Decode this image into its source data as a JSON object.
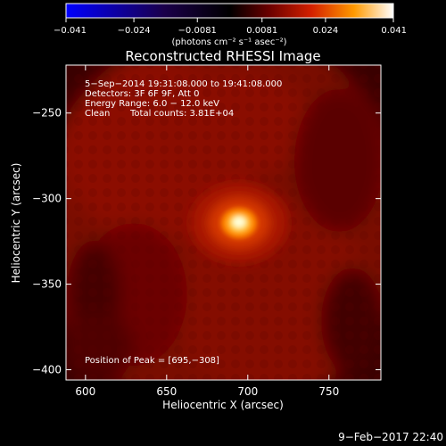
{
  "chart_data": {
    "type": "heatmap",
    "title": "Reconstructed RHESSI Image",
    "xlabel": "Heliocentric X (arcsec)",
    "ylabel": "Heliocentric Y (arcsec)",
    "xlim": [
      588,
      782
    ],
    "ylim": [
      -406,
      -222
    ],
    "x_ticks": [
      600,
      650,
      700,
      750
    ],
    "y_ticks": [
      -250,
      -300,
      -350,
      -400
    ],
    "colorbar": {
      "min": -0.041,
      "max": 0.041,
      "tick_values": [
        -0.041,
        -0.024,
        -0.0081,
        0.0081,
        0.024,
        0.041
      ],
      "tick_labels": [
        "−0.041",
        "−0.024",
        "−0.0081",
        "0.0081",
        "0.024",
        "0.041"
      ],
      "unit_label": "(photons cm⁻² s⁻¹ asec⁻²)",
      "colormap": [
        "#0000ff",
        "#000000",
        "#cc0000",
        "#ff9900",
        "#ffffff"
      ]
    },
    "annotations": [
      "5−Sep−2014 19:31:08.000 to 19:41:08.000",
      "Detectors: 3F 6F 9F, Att 0",
      "Energy Range: 6.0 − 12.0 keV",
      "Clean",
      "Total counts: 3.81E+04"
    ],
    "peak_label": "Position of Peak = [695,−308]",
    "peak": {
      "x": 695,
      "y": -308
    },
    "grid": false
  },
  "footer": {
    "timestamp": "9−Feb−2017 22:40"
  }
}
